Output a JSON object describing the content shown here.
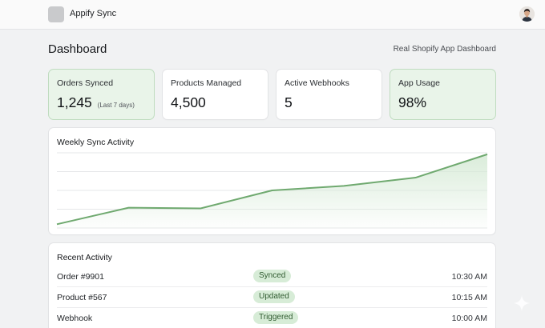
{
  "app": {
    "name": "Appify Sync"
  },
  "header": {
    "title": "Dashboard",
    "subtitle": "Real Shopify App Dashboard"
  },
  "stats": [
    {
      "label": "Orders Synced",
      "value": "1,245",
      "note": "(Last 7 days)",
      "highlight": true
    },
    {
      "label": "Products Managed",
      "value": "4,500",
      "note": "",
      "highlight": false
    },
    {
      "label": "Active Webhooks",
      "value": "5",
      "note": "",
      "highlight": false
    },
    {
      "label": "App Usage",
      "value": "98%",
      "note": "",
      "highlight": true
    }
  ],
  "chart": {
    "title": "Weekly Sync Activity",
    "line_color": "#6fa96f",
    "fill_color": "#d6ead6"
  },
  "chart_data": {
    "type": "area",
    "title": "Weekly Sync Activity",
    "xlabel": "",
    "ylabel": "",
    "ylim": [
      0,
      100
    ],
    "grid": true,
    "values": [
      5,
      27,
      26,
      50,
      56,
      67,
      98
    ]
  },
  "activity": {
    "title": "Recent Activity",
    "rows": [
      {
        "name": "Order #9901",
        "status": "Synced",
        "time": "10:30 AM"
      },
      {
        "name": "Product #567",
        "status": "Updated",
        "time": "10:15 AM"
      },
      {
        "name": "Webhook",
        "status": "Triggered",
        "time": "10:00 AM"
      }
    ]
  },
  "icons": {
    "logo": "app-logo",
    "avatar": "user-avatar",
    "sparkle": "sparkle-icon"
  }
}
